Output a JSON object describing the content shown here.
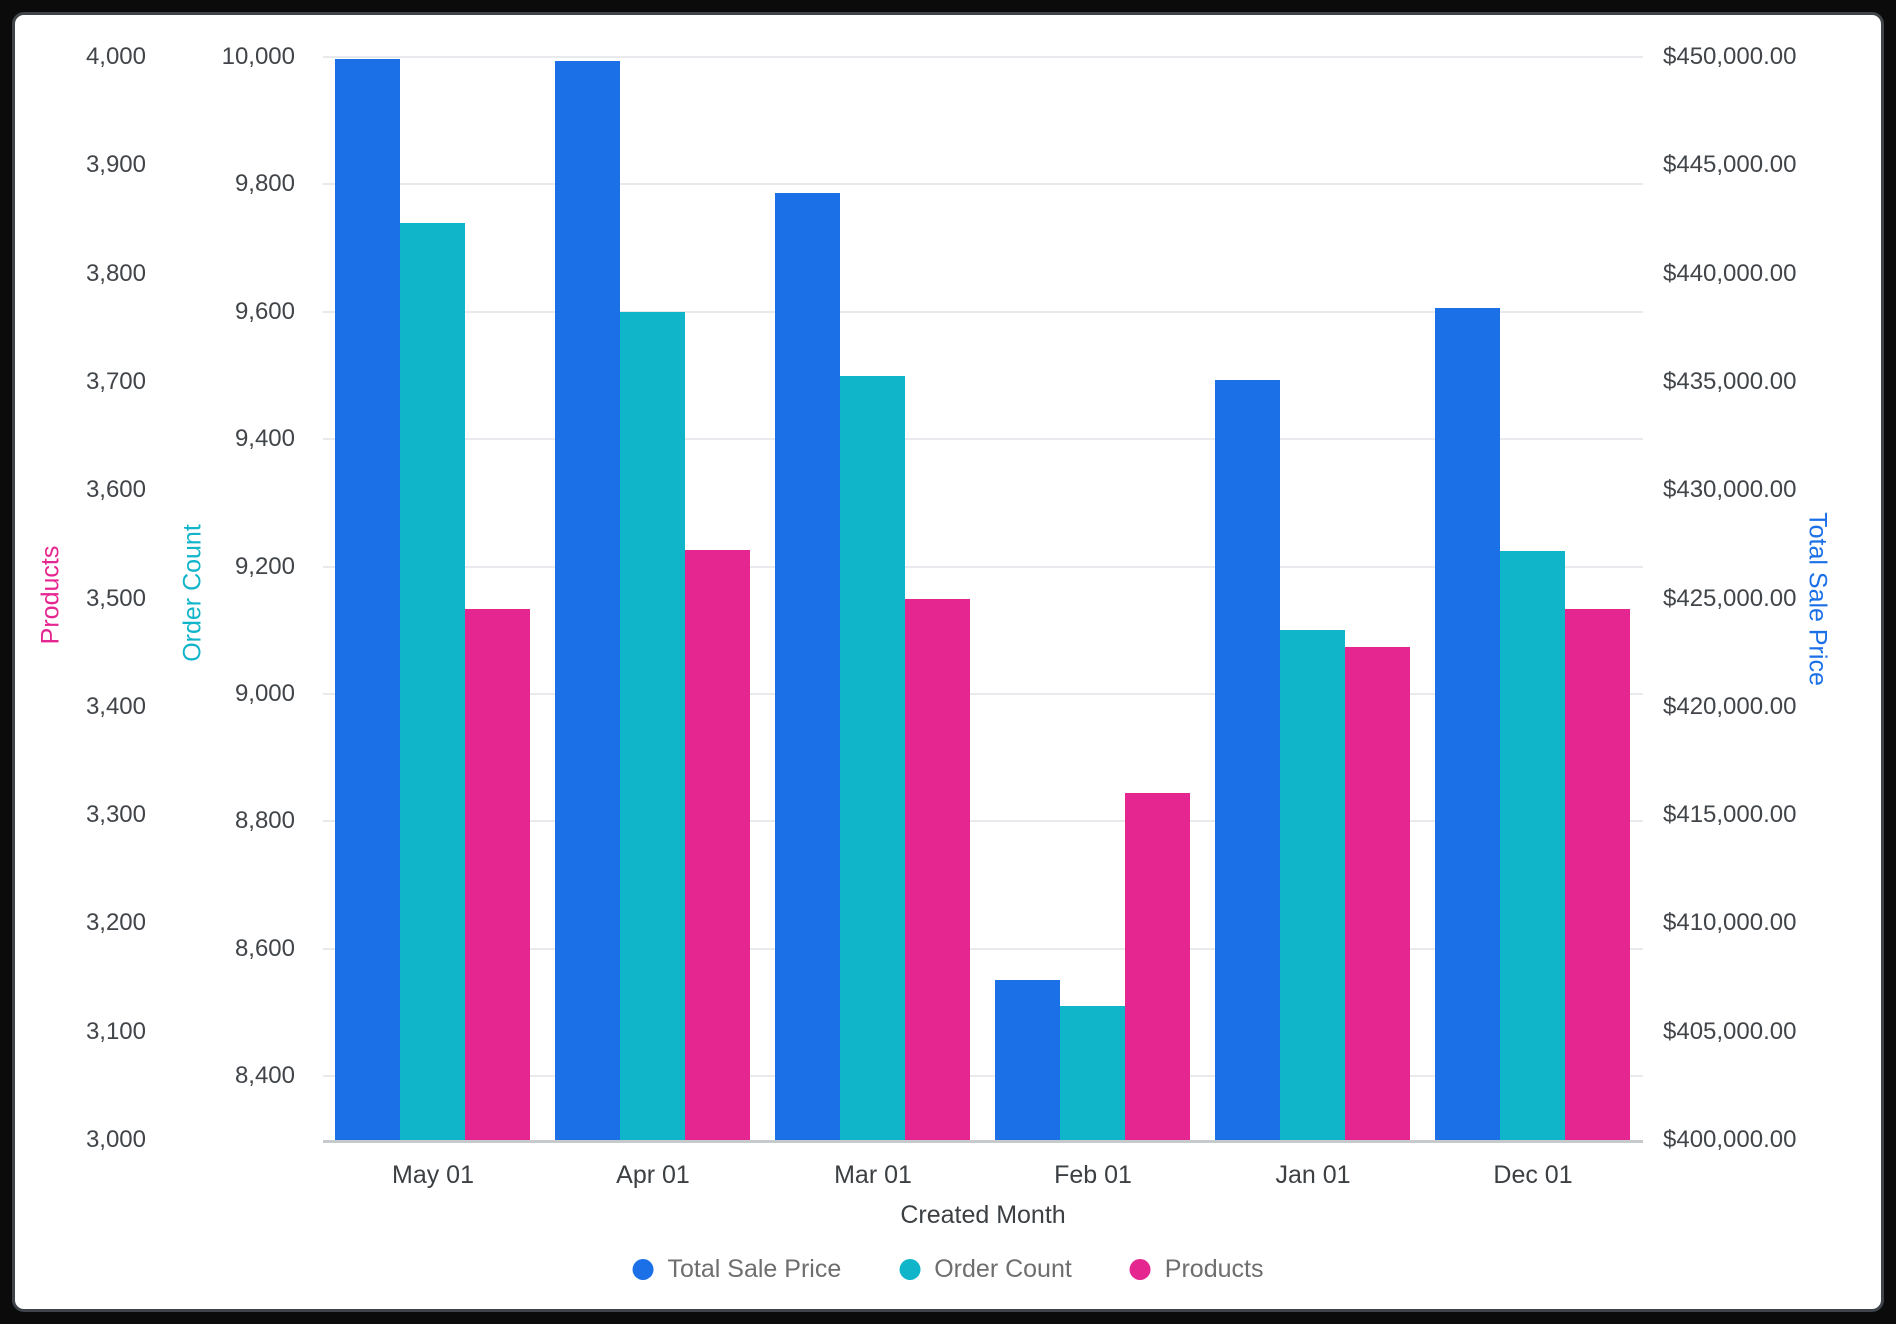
{
  "chart_data": {
    "type": "bar",
    "title": "",
    "xlabel": "Created Month",
    "categories": [
      "May 01",
      "Apr 01",
      "Mar 01",
      "Feb 01",
      "Jan 01",
      "Dec 01"
    ],
    "series": [
      {
        "name": "Total Sale Price",
        "axis": "price",
        "color": "#1b70e8",
        "values": [
          449900,
          449800,
          443700,
          407400,
          435100,
          438400
        ]
      },
      {
        "name": "Order Count",
        "axis": "order",
        "color": "#11b5ca",
        "values": [
          9740,
          9600,
          9500,
          8510,
          9100,
          9225
        ]
      },
      {
        "name": "Products",
        "axis": "products",
        "color": "#e62690",
        "values": [
          3490,
          3545,
          3500,
          3320,
          3455,
          3490
        ]
      }
    ],
    "axes": {
      "products": {
        "title": "Products",
        "color": "#e62690",
        "min": 3000,
        "max": 4000,
        "tick_start": 3000,
        "tick_step": 100,
        "format": "number",
        "tick_labels": [
          "3,000",
          "3,100",
          "3,200",
          "3,300",
          "3,400",
          "3,500",
          "3,600",
          "3,700",
          "3,800",
          "3,900",
          "4,000"
        ]
      },
      "order": {
        "title": "Order Count",
        "color": "#11b5ca",
        "min": 8300,
        "max": 10000,
        "tick_start": 8400,
        "tick_step": 200,
        "format": "number",
        "tick_labels": [
          "8,400",
          "8,600",
          "8,800",
          "9,000",
          "9,200",
          "9,400",
          "9,600",
          "9,800",
          "10,000"
        ]
      },
      "price": {
        "title": "Total Sale Price",
        "color": "#1b70e8",
        "min": 400000,
        "max": 450000,
        "tick_start": 400000,
        "tick_step": 5000,
        "format": "currency",
        "tick_labels": [
          "$400,000.00",
          "$405,000.00",
          "$410,000.00",
          "$415,000.00",
          "$420,000.00",
          "$425,000.00",
          "$430,000.00",
          "$435,000.00",
          "$440,000.00",
          "$445,000.00",
          "$450,000.00"
        ]
      }
    },
    "grid": "horizontal",
    "gridline_axis": "order",
    "legend_position": "bottom",
    "legend": [
      "Total Sale Price",
      "Order Count",
      "Products"
    ]
  },
  "colors": {
    "background": "#ffffff",
    "frame": "#0b0b0b",
    "gridline": "#e8eaed",
    "axis_line": "#c6cacd",
    "tick_text": "#414549",
    "legend_text": "#6e6e6e"
  }
}
